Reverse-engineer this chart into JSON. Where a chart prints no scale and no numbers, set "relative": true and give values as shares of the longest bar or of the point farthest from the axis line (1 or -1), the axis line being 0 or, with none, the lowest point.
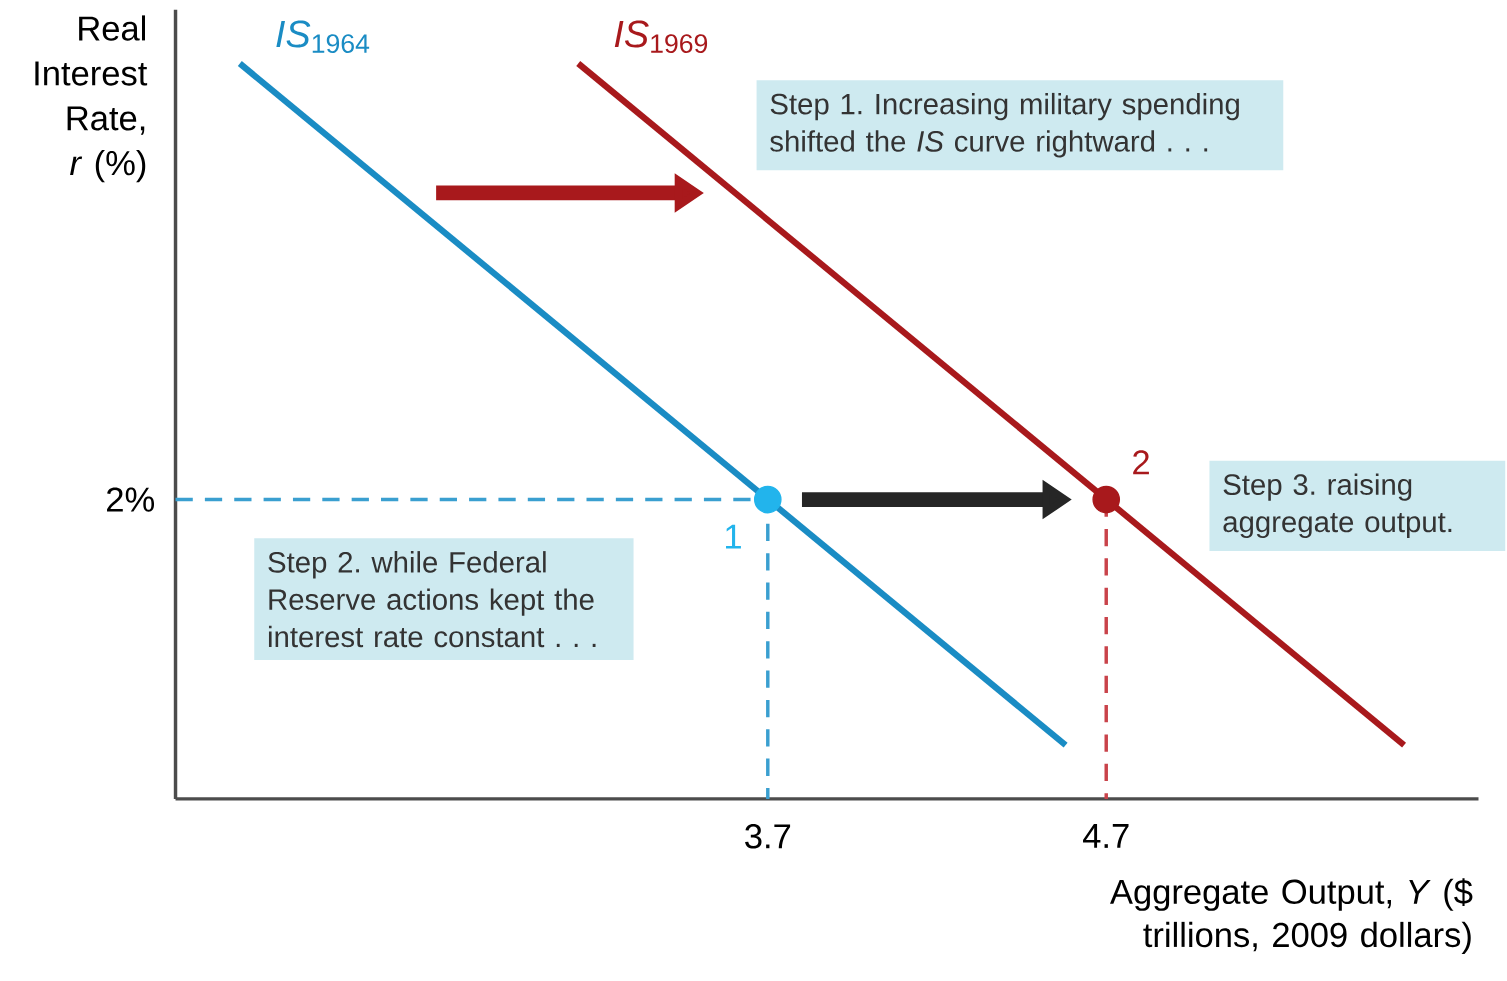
{
  "chart_data": {
    "type": "line",
    "relative": true,
    "xlabel": "Aggregate Output, *Y* ($ trillions, 2009 dollars)",
    "ylabel": "Real Interest Rate, *r* (%)",
    "xlim": [
      1.95,
      5.8
    ],
    "xticks": [
      3.7,
      4.7
    ],
    "series": [
      {
        "name": "*IS*$_{1964}$",
        "color": "#1a8cc4",
        "x": [
          2.14,
          4.58
        ],
        "values": [
          1,
          0.073
        ]
      },
      {
        "name": "*IS*$_{1969}$",
        "color": "#a8191c",
        "x": [
          3.14,
          5.58
        ],
        "values": [
          1,
          0.073
        ]
      },
      {
        "color": "#3a9fd0",
        "line_style": "dashed",
        "x": [
          1.95,
          3.7,
          3.7
        ],
        "values": [
          0.407,
          0.407,
          0
        ]
      },
      {
        "color": "#c9434a",
        "line_style": "dashed",
        "x": [
          4.7,
          4.7
        ],
        "values": [
          0.407,
          0
        ]
      },
      {
        "type": "scatter",
        "marker": "circle",
        "x": [
          3.7,
          4.7
        ],
        "values": [
          0.407,
          0.407
        ],
        "colors": [
          "#22b4ec",
          "#a8191c"
        ]
      }
    ],
    "annotations": [
      {
        "text": "1",
        "x": 3.7,
        "y": 0.407
      },
      {
        "text": "2",
        "x": 4.7,
        "y": 0.407
      },
      "2%",
      "Step 1. Increasing military spending shifted the *IS* curve rightward . . .",
      "Step 2. while Federal Reserve actions kept the interest rate constant . . .",
      "Step 3. raising aggregate output."
    ]
  }
}
